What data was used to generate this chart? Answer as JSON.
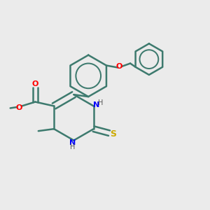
{
  "background_color": "#ebebeb",
  "bond_color": "#3d7a6e",
  "atom_colors": {
    "O": "#ff0000",
    "N": "#0000ff",
    "S": "#ccaa00",
    "H_label": "#666666",
    "C": "#3d7a6e"
  },
  "title": "",
  "figsize": [
    3.0,
    3.0
  ],
  "dpi": 100
}
